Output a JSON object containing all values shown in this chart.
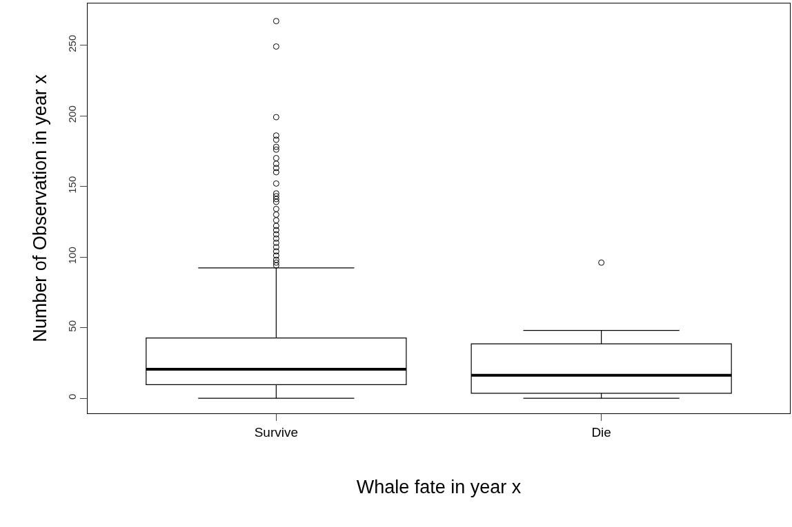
{
  "chart_data": {
    "type": "box",
    "xlabel": "Whale fate in year x",
    "ylabel": "Number of Observation in year x",
    "categories": [
      "Survive",
      "Die"
    ],
    "boxes": [
      {
        "low": 0,
        "q1": 9.6,
        "median": 20.5,
        "q3": 42.6,
        "high": 92.3,
        "outliers": [
          267,
          249,
          199,
          186,
          183,
          178,
          176,
          170,
          166,
          163,
          160,
          152,
          145,
          143,
          141,
          139,
          134,
          130,
          126,
          122,
          119,
          116,
          113,
          110,
          107,
          104,
          101,
          98,
          96,
          94
        ]
      },
      {
        "low": 0,
        "q1": 3.5,
        "median": 16.3,
        "q3": 38.5,
        "high": 48,
        "outliers": [
          96
        ]
      }
    ],
    "color": "#000000",
    "ylim": [
      -10.7,
      279.5
    ],
    "yticks": [
      0,
      50,
      100,
      150,
      200,
      250
    ],
    "marker": "circle"
  }
}
